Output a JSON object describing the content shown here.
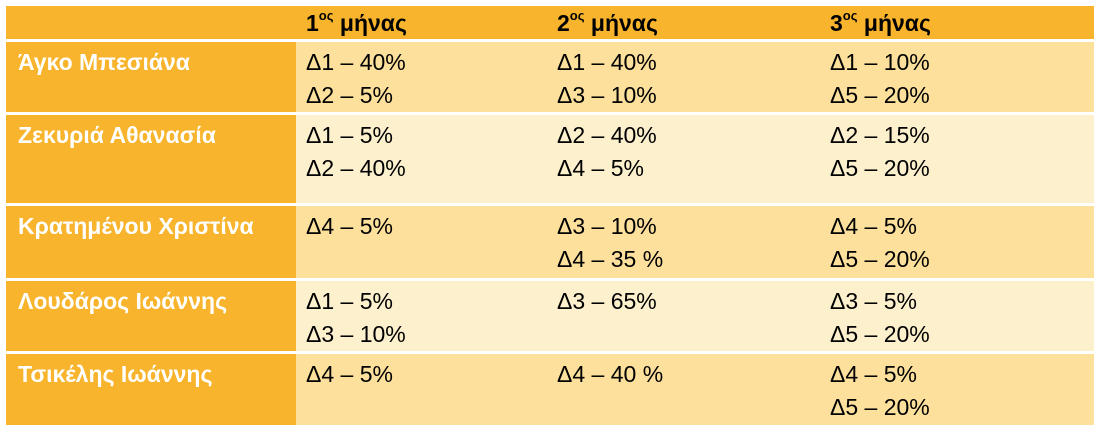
{
  "header": {
    "corner": "",
    "months": [
      {
        "num": "1",
        "sup": "ος",
        "word": "μήνας"
      },
      {
        "num": "2",
        "sup": "ος",
        "word": "μήνας"
      },
      {
        "num": "3",
        "sup": "ος",
        "word": "μήνας"
      }
    ]
  },
  "rows": [
    {
      "name": "Άγκο Μπεσιάνα",
      "cells": [
        [
          "Δ1 – 40%",
          "Δ2 – 5%"
        ],
        [
          "Δ1 – 40%",
          "Δ3 – 10%"
        ],
        [
          "Δ1 – 10%",
          "Δ5 – 20%"
        ]
      ]
    },
    {
      "name": "Ζεκυριά Αθανασία",
      "cells": [
        [
          "Δ1 – 5%",
          "Δ2 – 40%"
        ],
        [
          "Δ2 – 40%",
          "Δ4 – 5%"
        ],
        [
          "Δ2 – 15%",
          "Δ5 – 20%"
        ]
      ]
    },
    {
      "name": "Κρατημένου Χριστίνα",
      "cells": [
        [
          "Δ4 – 5%"
        ],
        [
          "Δ3 – 10%",
          "Δ4 – 35 %"
        ],
        [
          "Δ4 – 5%",
          "Δ5 – 20%"
        ]
      ]
    },
    {
      "name": "Λουδάρος Ιωάννης",
      "cells": [
        [
          "Δ1 – 5%",
          "Δ3 – 10%"
        ],
        [
          "Δ3 – 65%"
        ],
        [
          "Δ3 – 5%",
          "Δ5 – 20%"
        ]
      ]
    },
    {
      "name": "Τσικέλης Ιωάννης",
      "cells": [
        [
          "Δ4 – 5%"
        ],
        [
          "Δ4 – 40 %"
        ],
        [
          "Δ4 – 5%",
          "Δ5 – 20%"
        ]
      ]
    }
  ],
  "colors": {
    "header_bg": "#f7b42c",
    "row_dark": "#fce09c",
    "row_light": "#fdf0cd",
    "name_text": "#ffffff"
  }
}
